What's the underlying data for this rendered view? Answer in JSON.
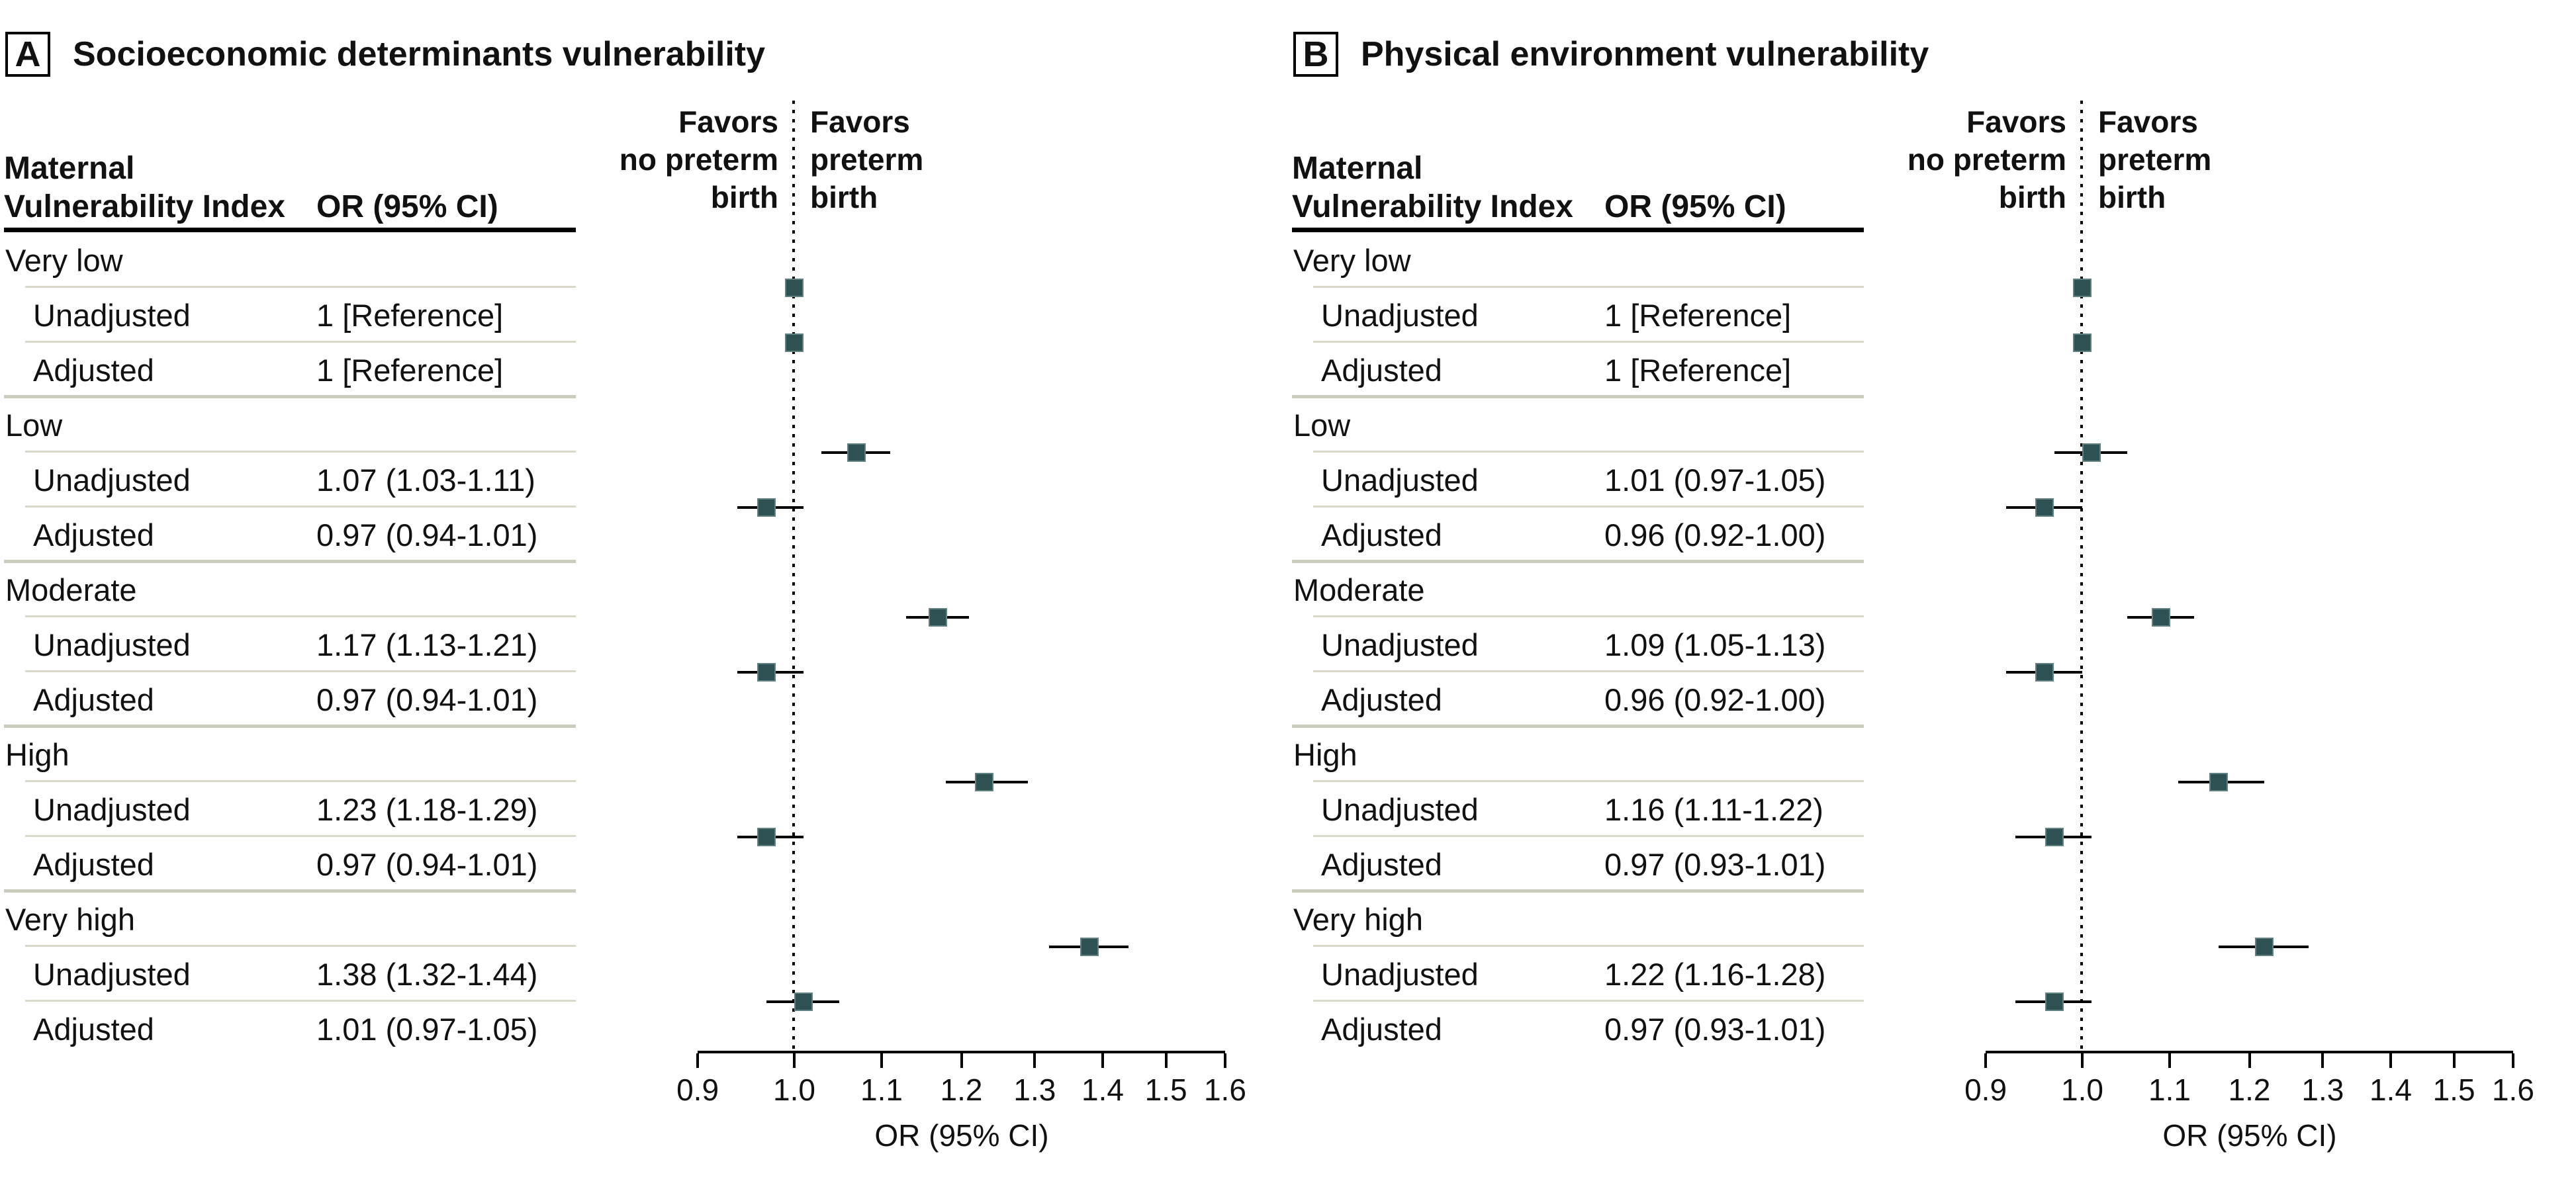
{
  "table_header": {
    "col1_line1": "Maternal",
    "col1_line2": "Vulnerability Index",
    "col2": "OR (95% CI)"
  },
  "colors": {
    "marker_fill": "#2e5153",
    "ci_line": "#000000",
    "row_rule": "#d9d8c9",
    "group_rule": "#ccccbc",
    "header_rule": "#000000",
    "text": "#111111",
    "background": "#ffffff"
  },
  "chart_data": [
    {
      "type": "scatter",
      "subtype": "forest-plot",
      "panel_label": "A",
      "title": "Socioeconomic determinants vulnerability",
      "xlabel": "OR (95% CI)",
      "x_scale": "log",
      "xlim": [
        0.9,
        1.6
      ],
      "reference_line": 1.0,
      "x_ticks": [
        0.9,
        1.0,
        1.1,
        1.2,
        1.3,
        1.4,
        1.5,
        1.6
      ],
      "x_tick_labels": [
        "0.9",
        "1.0",
        "1.1",
        "1.2",
        "1.3",
        "1.4",
        "1.5",
        "1.6"
      ],
      "favors_left": [
        "Favors",
        "no preterm",
        "birth"
      ],
      "favors_right": [
        "Favors",
        "preterm",
        "birth"
      ],
      "groups": [
        {
          "name": "Very low",
          "rows": [
            {
              "label": "Unadjusted",
              "text": "1 [Reference]",
              "or": 1.0,
              "ci": null
            },
            {
              "label": "Adjusted",
              "text": "1 [Reference]",
              "or": 1.0,
              "ci": null
            }
          ]
        },
        {
          "name": "Low",
          "rows": [
            {
              "label": "Unadjusted",
              "text": "1.07 (1.03-1.11)",
              "or": 1.07,
              "ci": [
                1.03,
                1.11
              ]
            },
            {
              "label": "Adjusted",
              "text": "0.97 (0.94-1.01)",
              "or": 0.97,
              "ci": [
                0.94,
                1.01
              ]
            }
          ]
        },
        {
          "name": "Moderate",
          "rows": [
            {
              "label": "Unadjusted",
              "text": "1.17 (1.13-1.21)",
              "or": 1.17,
              "ci": [
                1.13,
                1.21
              ]
            },
            {
              "label": "Adjusted",
              "text": "0.97 (0.94-1.01)",
              "or": 0.97,
              "ci": [
                0.94,
                1.01
              ]
            }
          ]
        },
        {
          "name": "High",
          "rows": [
            {
              "label": "Unadjusted",
              "text": "1.23 (1.18-1.29)",
              "or": 1.23,
              "ci": [
                1.18,
                1.29
              ]
            },
            {
              "label": "Adjusted",
              "text": "0.97 (0.94-1.01)",
              "or": 0.97,
              "ci": [
                0.94,
                1.01
              ]
            }
          ]
        },
        {
          "name": "Very high",
          "rows": [
            {
              "label": "Unadjusted",
              "text": "1.38 (1.32-1.44)",
              "or": 1.38,
              "ci": [
                1.32,
                1.44
              ]
            },
            {
              "label": "Adjusted",
              "text": "1.01 (0.97-1.05)",
              "or": 1.01,
              "ci": [
                0.97,
                1.05
              ]
            }
          ]
        }
      ]
    },
    {
      "type": "scatter",
      "subtype": "forest-plot",
      "panel_label": "B",
      "title": "Physical environment vulnerability",
      "xlabel": "OR (95% CI)",
      "x_scale": "log",
      "xlim": [
        0.9,
        1.6
      ],
      "reference_line": 1.0,
      "x_ticks": [
        0.9,
        1.0,
        1.1,
        1.2,
        1.3,
        1.4,
        1.5,
        1.6
      ],
      "x_tick_labels": [
        "0.9",
        "1.0",
        "1.1",
        "1.2",
        "1.3",
        "1.4",
        "1.5",
        "1.6"
      ],
      "favors_left": [
        "Favors",
        "no preterm",
        "birth"
      ],
      "favors_right": [
        "Favors",
        "preterm",
        "birth"
      ],
      "groups": [
        {
          "name": "Very low",
          "rows": [
            {
              "label": "Unadjusted",
              "text": "1 [Reference]",
              "or": 1.0,
              "ci": null
            },
            {
              "label": "Adjusted",
              "text": "1 [Reference]",
              "or": 1.0,
              "ci": null
            }
          ]
        },
        {
          "name": "Low",
          "rows": [
            {
              "label": "Unadjusted",
              "text": "1.01 (0.97-1.05)",
              "or": 1.01,
              "ci": [
                0.97,
                1.05
              ]
            },
            {
              "label": "Adjusted",
              "text": "0.96 (0.92-1.00)",
              "or": 0.96,
              "ci": [
                0.92,
                1.0
              ]
            }
          ]
        },
        {
          "name": "Moderate",
          "rows": [
            {
              "label": "Unadjusted",
              "text": "1.09 (1.05-1.13)",
              "or": 1.09,
              "ci": [
                1.05,
                1.13
              ]
            },
            {
              "label": "Adjusted",
              "text": "0.96 (0.92-1.00)",
              "or": 0.96,
              "ci": [
                0.92,
                1.0
              ]
            }
          ]
        },
        {
          "name": "High",
          "rows": [
            {
              "label": "Unadjusted",
              "text": "1.16 (1.11-1.22)",
              "or": 1.16,
              "ci": [
                1.11,
                1.22
              ]
            },
            {
              "label": "Adjusted",
              "text": "0.97 (0.93-1.01)",
              "or": 0.97,
              "ci": [
                0.93,
                1.01
              ]
            }
          ]
        },
        {
          "name": "Very high",
          "rows": [
            {
              "label": "Unadjusted",
              "text": "1.22 (1.16-1.28)",
              "or": 1.22,
              "ci": [
                1.16,
                1.28
              ]
            },
            {
              "label": "Adjusted",
              "text": "0.97 (0.93-1.01)",
              "or": 0.97,
              "ci": [
                0.93,
                1.01
              ]
            }
          ]
        }
      ]
    }
  ]
}
